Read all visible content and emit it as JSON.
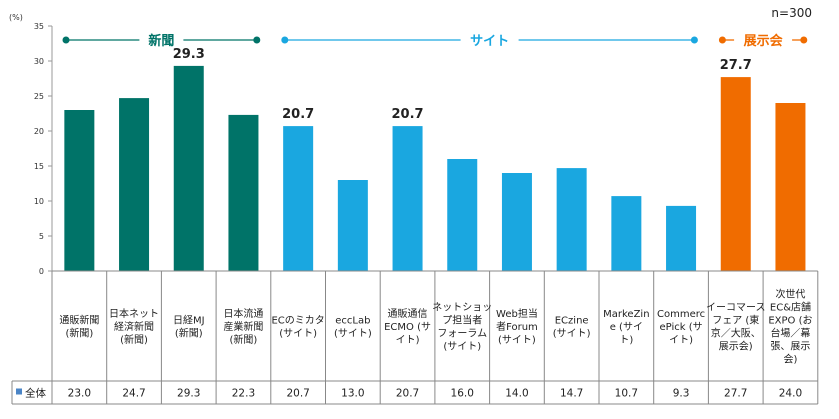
{
  "chart_data": {
    "type": "bar",
    "unit_label": "(%)",
    "sample_label": "n=300",
    "ylim": [
      0,
      35
    ],
    "yticks": [
      0,
      5,
      10,
      15,
      20,
      25,
      30,
      35
    ],
    "grid": false,
    "categories": [
      "通販新聞\n(新聞)",
      "日本ネット\n経済新聞\n(新聞)",
      "日経MJ\n(新聞)",
      "日本流通\n産業新聞\n(新聞)",
      "ECのミカタ\n(サイト)",
      "eccLab\n(サイト)",
      "通販通信\nECMO (サ\nイト)",
      "ネットショッ\nプ担当者\nフォーラム\n(サイト)",
      "Web担当\n者Forum\n(サイト)",
      "ECzine\n(サイト)",
      "MarkeZin\ne (サイ\nト)",
      "Commerc\nePick (サ\nイト)",
      "イーコマース\nフェア (東\n京／大阪、\n展示会)",
      "次世代\nEC&店舗\nEXPO (お\n台場／幕\n張、展示\n会)"
    ],
    "series": [
      {
        "name": "全体",
        "values": [
          23.0,
          24.7,
          29.3,
          22.3,
          20.7,
          13.0,
          20.7,
          16.0,
          14.0,
          14.7,
          10.7,
          9.3,
          27.7,
          24.0
        ],
        "display": [
          "23.0",
          "24.7",
          "29.3",
          "22.3",
          "20.7",
          "13.0",
          "20.7",
          "16.0",
          "14.0",
          "14.7",
          "10.7",
          "9.3",
          "27.7",
          "24.0"
        ]
      }
    ],
    "groups": [
      {
        "label": "新聞",
        "from": 0,
        "to": 3,
        "color": "#007368"
      },
      {
        "label": "サイト",
        "from": 4,
        "to": 11,
        "color": "#1aa7e0"
      },
      {
        "label": "展示会",
        "from": 12,
        "to": 13,
        "color": "#f06c00"
      }
    ],
    "data_labels": [
      {
        "index": 2,
        "text": "29.3"
      },
      {
        "index": 4,
        "text": "20.7"
      },
      {
        "index": 6,
        "text": "20.7"
      },
      {
        "index": 12,
        "text": "27.7"
      }
    ],
    "legend_swatch_color": "#4a84c6"
  }
}
